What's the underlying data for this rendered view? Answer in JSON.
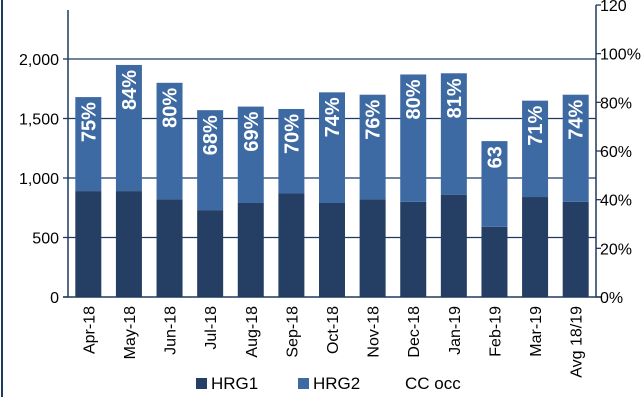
{
  "chart_data": {
    "type": "bar",
    "stacked": true,
    "title": "",
    "categories": [
      "Apr-18",
      "May-18",
      "Jun-18",
      "Jul-18",
      "Aug-18",
      "Sep-18",
      "Oct-18",
      "Nov-18",
      "Dec-18",
      "Jan-19",
      "Feb-19",
      "Mar-19",
      "Avg 18/19"
    ],
    "series": [
      {
        "name": "HRG1",
        "values": [
          890,
          890,
          820,
          730,
          790,
          870,
          790,
          820,
          800,
          860,
          590,
          840,
          800
        ],
        "color": "#243f63"
      },
      {
        "name": "HRG2",
        "values": [
          790,
          1060,
          980,
          840,
          810,
          710,
          930,
          880,
          1070,
          1020,
          720,
          810,
          900
        ],
        "color": "#3e6aa3"
      },
      {
        "name": "CC occ",
        "values": [
          75,
          84,
          80,
          68,
          69,
          70,
          74,
          76,
          80,
          81,
          63,
          71,
          74
        ]
      }
    ],
    "bar_labels": [
      "75%",
      "84%",
      "80%",
      "68%",
      "69%",
      "70%",
      "74%",
      "76%",
      "80%",
      "81%",
      "63",
      "71%",
      "74%"
    ],
    "y_left": {
      "ylim": [
        0,
        2000
      ],
      "ticks": [
        "0",
        "500",
        "1,000",
        "1,500",
        "2,000"
      ]
    },
    "y_right": {
      "ylim": [
        0,
        120
      ],
      "ticks": [
        "0%",
        "20%",
        "40%",
        "60%",
        "80%",
        "100%",
        "120"
      ]
    },
    "grid": true,
    "legend": {
      "position": "bottom",
      "items": [
        "HRG1",
        "HRG2",
        "CC occ"
      ]
    }
  }
}
